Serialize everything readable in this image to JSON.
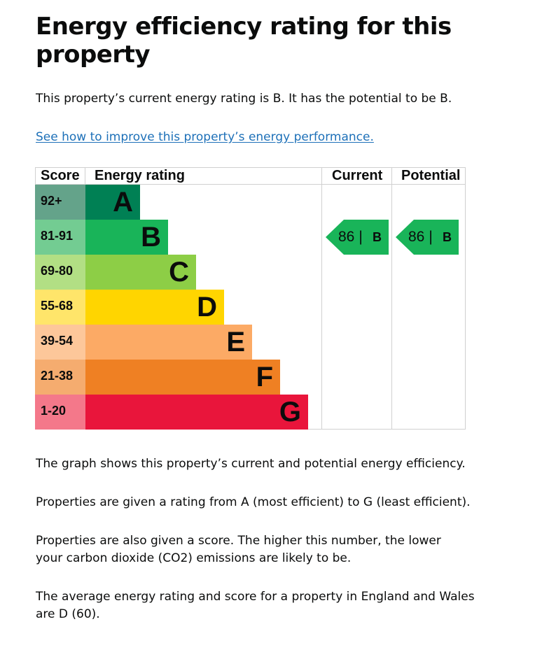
{
  "title": "Energy efficiency rating for this property",
  "intro": "This property’s current energy rating is B. It has the potential to be B.",
  "improve_link": "See how to improve this property’s energy performance.",
  "chart": {
    "headers": {
      "score": "Score",
      "rating": "Energy rating",
      "current": "Current",
      "potential": "Potential"
    },
    "bands": [
      {
        "range": "92+",
        "letter": "A",
        "bar_color": "#008054",
        "score_color": "#64a38a"
      },
      {
        "range": "81-91",
        "letter": "B",
        "bar_color": "#19b459",
        "score_color": "#73cc92"
      },
      {
        "range": "69-80",
        "letter": "C",
        "bar_color": "#8dce46",
        "score_color": "#b2df84"
      },
      {
        "range": "55-68",
        "letter": "D",
        "bar_color": "#ffd500",
        "score_color": "#ffe56a"
      },
      {
        "range": "39-54",
        "letter": "E",
        "bar_color": "#fcaa65",
        "score_color": "#fdc79a"
      },
      {
        "range": "21-38",
        "letter": "F",
        "bar_color": "#ef8023",
        "score_color": "#f5ac6f"
      },
      {
        "range": "1-20",
        "letter": "G",
        "bar_color": "#e9153b",
        "score_color": "#f4788a"
      }
    ],
    "current": {
      "score": "86",
      "separator": "|",
      "band": "B",
      "color": "#19b459"
    },
    "potential": {
      "score": "86",
      "separator": "|",
      "band": "B",
      "color": "#19b459"
    }
  },
  "paragraphs": {
    "graph": "The graph shows this property’s current and potential energy efficiency.",
    "ratings": "Properties are given a rating from A (most efficient) to G (least efficient).",
    "score": "Properties are also given a score. The higher this number, the lower your carbon dioxide (CO2) emissions are likely to be.",
    "average": "The average energy rating and score for a property in England and Wales are D (60)."
  }
}
